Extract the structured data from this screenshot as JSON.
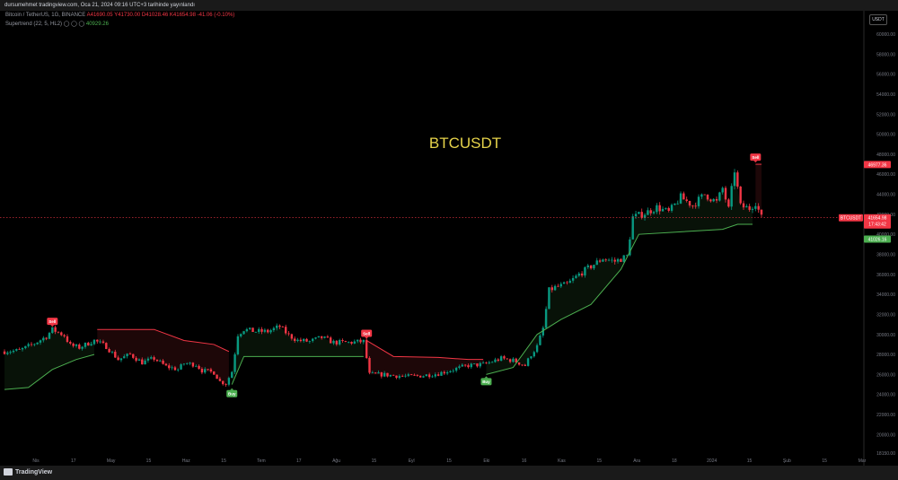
{
  "header": {
    "publisher_line": "dursumehmet tradingview.com, Oca 21, 2024 09:16 UTC+3 tarihinde yayınlandı"
  },
  "legend": {
    "symbol": "Bitcoin / TetherUS, 1G, BINANCE",
    "ohlc": "A41690.05 Y41730.00 D41028.46 K41654.98 -41.06 (-0.10%)",
    "indicator": "Supertrend (22, 5, HL2)",
    "indicator_value": "40929.26"
  },
  "currency_button": "USDT",
  "footer": {
    "logo_text": "TradingView"
  },
  "colors": {
    "background": "#000000",
    "up_candle": "#089981",
    "down_candle": "#f23645",
    "supertrend_up": "#4caf50",
    "supertrend_down": "#f23645",
    "title": "#e6d34a"
  },
  "chart_data": {
    "type": "candlestick",
    "title": "BTCUSDT",
    "ylim": [
      18150,
      61750
    ],
    "y_ticks": [
      "60000.00",
      "58000.00",
      "56000.00",
      "54000.00",
      "52000.00",
      "50000.00",
      "48000.00",
      "46000.00",
      "44000.00",
      "42000.00",
      "40000.00",
      "38000.00",
      "36000.00",
      "34000.00",
      "32000.00",
      "30000.00",
      "28000.00",
      "26000.00",
      "24000.00",
      "22000.00",
      "20000.00",
      "18150.00"
    ],
    "x_labels": [
      "Nis",
      "17",
      "May",
      "15",
      "Haz",
      "15",
      "Tem",
      "17",
      "Ağu",
      "15",
      "Eyl",
      "15",
      "Eki",
      "16",
      "Kas",
      "15",
      "Ara",
      "18",
      "2024",
      "15",
      "Şub",
      "15",
      "Mar"
    ],
    "price_labels": {
      "symbol": "BTCUSDT",
      "last": "41654.98",
      "countdown": "17:43:42",
      "supertrend_down": "46977.36",
      "supertrend_up": "41026.16"
    },
    "signals": [
      {
        "label": "Sell",
        "date": "Nis 17",
        "price": 30600
      },
      {
        "label": "Buy",
        "date": "Haz 15",
        "price": 24800
      },
      {
        "label": "Sell",
        "date": "Ağu 15",
        "price": 29400
      },
      {
        "label": "Buy",
        "date": "Eyl 30",
        "price": 26000
      },
      {
        "label": "Sell",
        "date": "Oca 12",
        "price": 47000
      }
    ],
    "supertrend": [
      {
        "x": 0,
        "y": 24500,
        "dir": "up"
      },
      {
        "x": 8,
        "y": 24700,
        "dir": "up"
      },
      {
        "x": 16,
        "y": 26500,
        "dir": "up"
      },
      {
        "x": 24,
        "y": 27500,
        "dir": "up"
      },
      {
        "x": 30,
        "y": 28000,
        "dir": "up"
      },
      {
        "x": 31,
        "y": 30500,
        "dir": "down"
      },
      {
        "x": 50,
        "y": 30500,
        "dir": "down"
      },
      {
        "x": 60,
        "y": 29400,
        "dir": "down"
      },
      {
        "x": 70,
        "y": 29000,
        "dir": "down"
      },
      {
        "x": 75,
        "y": 28300,
        "dir": "down"
      },
      {
        "x": 76,
        "y": 25000,
        "dir": "up"
      },
      {
        "x": 80,
        "y": 27800,
        "dir": "up"
      },
      {
        "x": 120,
        "y": 27800,
        "dir": "up"
      },
      {
        "x": 121,
        "y": 29400,
        "dir": "down"
      },
      {
        "x": 130,
        "y": 27800,
        "dir": "down"
      },
      {
        "x": 145,
        "y": 27700,
        "dir": "down"
      },
      {
        "x": 155,
        "y": 27500,
        "dir": "down"
      },
      {
        "x": 160,
        "y": 27500,
        "dir": "down"
      },
      {
        "x": 161,
        "y": 26000,
        "dir": "up"
      },
      {
        "x": 170,
        "y": 26700,
        "dir": "up"
      },
      {
        "x": 178,
        "y": 30000,
        "dir": "up"
      },
      {
        "x": 186,
        "y": 31500,
        "dir": "up"
      },
      {
        "x": 196,
        "y": 33000,
        "dir": "up"
      },
      {
        "x": 206,
        "y": 36500,
        "dir": "up"
      },
      {
        "x": 212,
        "y": 40000,
        "dir": "up"
      },
      {
        "x": 240,
        "y": 40500,
        "dir": "up"
      },
      {
        "x": 245,
        "y": 41000,
        "dir": "up"
      },
      {
        "x": 250,
        "y": 41000,
        "dir": "up"
      },
      {
        "x": 251,
        "y": 47000,
        "dir": "down"
      },
      {
        "x": 253,
        "y": 47000,
        "dir": "down"
      }
    ],
    "price_path": [
      [
        0,
        28300
      ],
      [
        5,
        28400
      ],
      [
        10,
        29100
      ],
      [
        14,
        29800
      ],
      [
        16,
        30500
      ],
      [
        20,
        29900
      ],
      [
        22,
        28900
      ],
      [
        25,
        28700
      ],
      [
        30,
        29400
      ],
      [
        34,
        28800
      ],
      [
        38,
        27500
      ],
      [
        42,
        28000
      ],
      [
        46,
        27200
      ],
      [
        50,
        27600
      ],
      [
        54,
        26800
      ],
      [
        58,
        26500
      ],
      [
        60,
        27100
      ],
      [
        64,
        27000
      ],
      [
        66,
        26400
      ],
      [
        70,
        26200
      ],
      [
        72,
        25300
      ],
      [
        74,
        25100
      ],
      [
        76,
        26300
      ],
      [
        78,
        30000
      ],
      [
        80,
        30500
      ],
      [
        84,
        30300
      ],
      [
        88,
        30300
      ],
      [
        92,
        30800
      ],
      [
        95,
        29900
      ],
      [
        98,
        29400
      ],
      [
        102,
        29300
      ],
      [
        106,
        29700
      ],
      [
        110,
        29200
      ],
      [
        115,
        29200
      ],
      [
        120,
        29300
      ],
      [
        122,
        26000
      ],
      [
        126,
        26000
      ],
      [
        130,
        25900
      ],
      [
        135,
        25800
      ],
      [
        140,
        25900
      ],
      [
        145,
        26100
      ],
      [
        150,
        26500
      ],
      [
        155,
        26900
      ],
      [
        160,
        27000
      ],
      [
        162,
        27200
      ],
      [
        166,
        27600
      ],
      [
        170,
        27400
      ],
      [
        174,
        26900
      ],
      [
        176,
        28000
      ],
      [
        178,
        28800
      ],
      [
        180,
        30600
      ],
      [
        182,
        34400
      ],
      [
        184,
        34700
      ],
      [
        188,
        35000
      ],
      [
        192,
        36000
      ],
      [
        196,
        36800
      ],
      [
        200,
        37600
      ],
      [
        204,
        37300
      ],
      [
        208,
        37800
      ],
      [
        210,
        41700
      ],
      [
        214,
        42100
      ],
      [
        218,
        42700
      ],
      [
        222,
        42200
      ],
      [
        226,
        43700
      ],
      [
        230,
        42900
      ],
      [
        234,
        44000
      ],
      [
        238,
        43200
      ],
      [
        240,
        44600
      ],
      [
        242,
        42500
      ],
      [
        244,
        46400
      ],
      [
        246,
        42800
      ],
      [
        249,
        42600
      ],
      [
        251,
        43200
      ],
      [
        253,
        41655
      ]
    ]
  }
}
